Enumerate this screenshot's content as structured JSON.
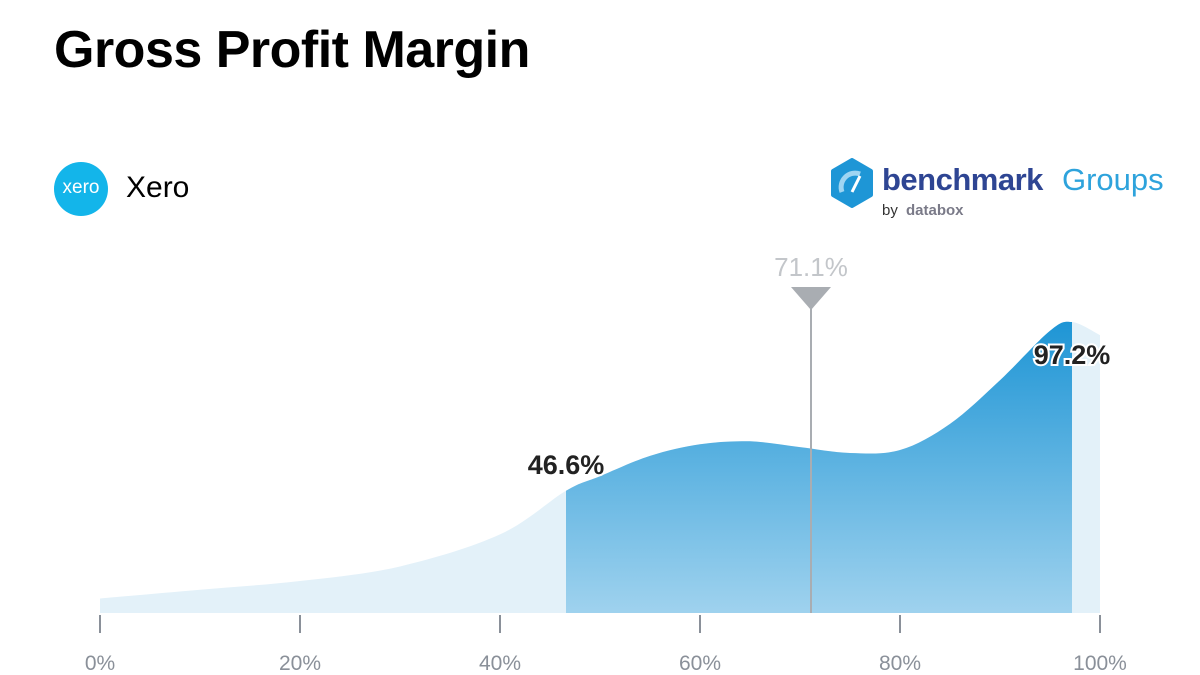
{
  "title": "Gross Profit Margin",
  "company": {
    "name": "Xero",
    "logo_text": "xero",
    "color": "#13b5ea"
  },
  "brand": {
    "word": "benchmark",
    "groups": "Groups",
    "by": "by",
    "databox": "databox"
  },
  "chart_data": {
    "type": "area",
    "title": "Gross Profit Margin",
    "xlim": [
      0,
      100
    ],
    "x_unit": "%",
    "x_ticks": [
      "0%",
      "20%",
      "40%",
      "60%",
      "80%",
      "100%"
    ],
    "grid": false,
    "density": {
      "x": [
        0,
        10,
        20,
        30,
        40,
        46.6,
        50,
        55,
        60,
        65,
        70,
        75,
        80,
        85,
        90,
        95,
        97.2,
        100
      ],
      "y": [
        0.05,
        0.08,
        0.11,
        0.16,
        0.27,
        0.42,
        0.47,
        0.54,
        0.58,
        0.59,
        0.57,
        0.55,
        0.56,
        0.65,
        0.8,
        0.97,
        1.0,
        0.955
      ]
    },
    "highlight_range": {
      "low": 46.6,
      "high": 97.2,
      "low_label": "46.6%",
      "high_label": "97.2%"
    },
    "marker": {
      "value": 71.1,
      "label": "71.1%"
    },
    "colors": {
      "light": "#e3f1f9",
      "dark_top": "#1e95d5",
      "dark_bottom": "#9fd2ee",
      "marker": "#a9adb2",
      "axis": "#8a9099"
    }
  }
}
